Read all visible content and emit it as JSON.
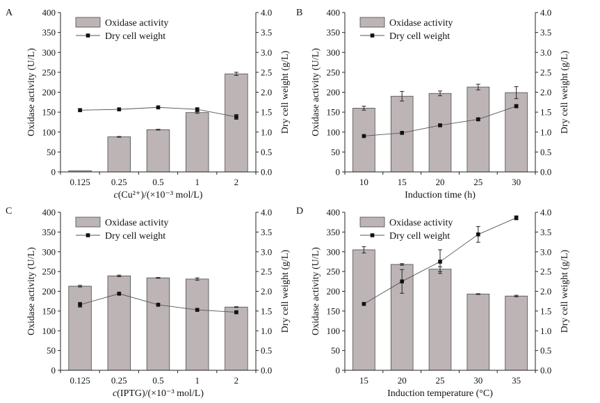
{
  "chart_data": [
    {
      "panel": "A",
      "type": "bar+line",
      "categories": [
        "0.125",
        "0.25",
        "0.5",
        "1",
        "2"
      ],
      "xlabel_italic": "c",
      "xlabel_rest": "(Cu²⁺)/(×10⁻³ mol/L)",
      "ylabel_left": "Oxidase activity (U/L)",
      "ylabel_right": "Dry cell weight (g/L)",
      "ylim_left": [
        0,
        400
      ],
      "ylim_right": [
        0,
        4.0
      ],
      "yticks_left": [
        "0",
        "50",
        "100",
        "150",
        "200",
        "250",
        "300",
        "350",
        "400"
      ],
      "yticks_right": [
        "0.0",
        "0.5",
        "1.0",
        "1.5",
        "2.0",
        "2.5",
        "3.0",
        "3.5",
        "4.0"
      ],
      "series": [
        {
          "name": "Oxidase activity",
          "kind": "bar",
          "values": [
            3,
            88,
            106,
            149,
            246
          ],
          "errors": [
            0,
            1,
            1,
            2,
            4
          ]
        },
        {
          "name": "Dry cell weight",
          "kind": "line",
          "values": [
            1.55,
            1.57,
            1.62,
            1.57,
            1.38
          ],
          "errors": [
            0.04,
            0.02,
            0.02,
            0.04,
            0.06
          ]
        }
      ],
      "legend": "top-left"
    },
    {
      "panel": "B",
      "type": "bar+line",
      "categories": [
        "10",
        "15",
        "20",
        "25",
        "30"
      ],
      "xlabel_italic": "",
      "xlabel_rest": "Induction time (h)",
      "ylabel_left": "Oxidase activity (U/L)",
      "ylabel_right": "Dry cell weight (g/L)",
      "ylim_left": [
        0,
        400
      ],
      "ylim_right": [
        0,
        4.0
      ],
      "yticks_left": [
        "0",
        "50",
        "100",
        "150",
        "200",
        "250",
        "300",
        "350",
        "400"
      ],
      "yticks_right": [
        "0.0",
        "0.5",
        "1.0",
        "1.5",
        "2.0",
        "2.5",
        "3.0",
        "3.5",
        "4.0"
      ],
      "series": [
        {
          "name": "Oxidase activity",
          "kind": "bar",
          "values": [
            160,
            190,
            197,
            213,
            199
          ],
          "errors": [
            5,
            12,
            6,
            7,
            15
          ]
        },
        {
          "name": "Dry cell weight",
          "kind": "line",
          "values": [
            0.9,
            0.98,
            1.17,
            1.32,
            1.65
          ],
          "errors": [
            0.02,
            0.02,
            0.03,
            0.03,
            0.04
          ]
        }
      ],
      "legend": "top-left"
    },
    {
      "panel": "C",
      "type": "bar+line",
      "categories": [
        "0.125",
        "0.25",
        "0.5",
        "1",
        "2"
      ],
      "xlabel_italic": "c",
      "xlabel_rest": "(IPTG)/(×10⁻³ mol/L)",
      "ylabel_left": "Oxidase activity (U/L)",
      "ylabel_right": "Dry cell weight (g/L)",
      "ylim_left": [
        0,
        400
      ],
      "ylim_right": [
        0,
        4.0
      ],
      "yticks_left": [
        "0",
        "50",
        "100",
        "150",
        "200",
        "250",
        "300",
        "350",
        "400"
      ],
      "yticks_right": [
        "0.0",
        "0.5",
        "1.0",
        "1.5",
        "2.0",
        "2.5",
        "3.0",
        "3.5",
        "4.0"
      ],
      "series": [
        {
          "name": "Oxidase activity",
          "kind": "bar",
          "values": [
            213,
            239,
            234,
            231,
            160
          ],
          "errors": [
            2,
            2,
            1,
            3,
            1
          ]
        },
        {
          "name": "Dry cell weight",
          "kind": "line",
          "values": [
            1.66,
            1.94,
            1.66,
            1.53,
            1.47
          ],
          "errors": [
            0.06,
            0.02,
            0.02,
            0.02,
            0.03
          ]
        }
      ],
      "legend": "top-left"
    },
    {
      "panel": "D",
      "type": "bar+line",
      "categories": [
        "15",
        "20",
        "25",
        "30",
        "35"
      ],
      "xlabel_italic": "",
      "xlabel_rest": "Induction temperature (°C)",
      "ylabel_left": "Oxidase activity (U/L)",
      "ylabel_right": "Dry cell weight (g/L)",
      "ylim_left": [
        0,
        400
      ],
      "ylim_right": [
        0,
        4.0
      ],
      "yticks_left": [
        "0",
        "50",
        "100",
        "150",
        "200",
        "250",
        "300",
        "350",
        "400"
      ],
      "yticks_right": [
        "0.0",
        "0.5",
        "1.0",
        "1.5",
        "2.0",
        "2.5",
        "3.0",
        "3.5",
        "4.0"
      ],
      "series": [
        {
          "name": "Oxidase activity",
          "kind": "bar",
          "values": [
            305,
            268,
            256,
            193,
            188
          ],
          "errors": [
            8,
            2,
            6,
            1,
            2
          ]
        },
        {
          "name": "Dry cell weight",
          "kind": "line",
          "values": [
            1.68,
            2.25,
            2.75,
            3.44,
            3.86
          ],
          "errors": [
            0.02,
            0.3,
            0.3,
            0.2,
            0.05
          ]
        }
      ],
      "legend": "top-left"
    }
  ],
  "colors": {
    "bar_fill": "#bdb4b6",
    "bar_stroke": "#4a4a4a",
    "line": "#555555",
    "marker": "#111111",
    "axis": "#222222"
  }
}
